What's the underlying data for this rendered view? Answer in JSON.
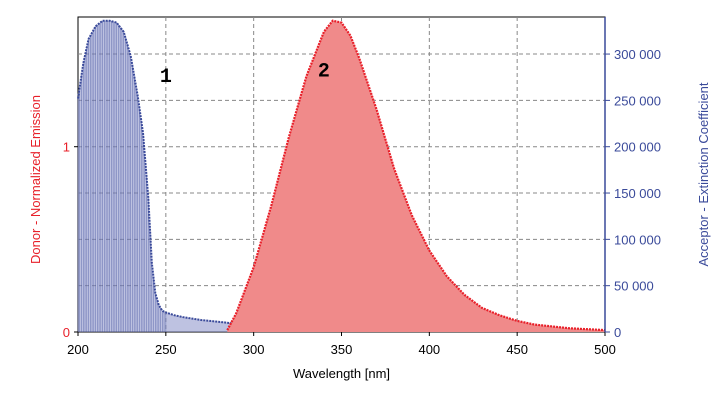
{
  "chart_data": {
    "type": "area",
    "title": "",
    "xlabel": "Wavelength [nm]",
    "ylabel_left": "Donor  -  Normalized Emission",
    "ylabel_right": "Acceptor  -  Extinction Coefficient",
    "xlim": [
      200,
      500
    ],
    "ylim_left": [
      0,
      1.7
    ],
    "ylim_right": [
      0,
      340000
    ],
    "x_ticks": [
      "200",
      "250",
      "300",
      "350",
      "400",
      "450",
      "500"
    ],
    "y_left_ticks": [
      {
        "v": 0,
        "label": "0"
      },
      {
        "v": 1,
        "label": "1"
      }
    ],
    "y_right_ticks": [
      {
        "v": 0,
        "label": "0"
      },
      {
        "v": 50000,
        "label": "50 000"
      },
      {
        "v": 100000,
        "label": "100 000"
      },
      {
        "v": 150000,
        "label": "150 000"
      },
      {
        "v": 200000,
        "label": "200 000"
      },
      {
        "v": 250000,
        "label": "250 000"
      },
      {
        "v": 300000,
        "label": "300 000"
      }
    ],
    "grid": true,
    "annotations": [
      {
        "text": "1",
        "x": 250,
        "y": 1.35
      },
      {
        "text": "2",
        "x": 340,
        "y": 1.38
      }
    ],
    "colors": {
      "donor": "#e8202a",
      "donor_fill": "#f08a8a",
      "acceptor": "#3a4a9a",
      "acceptor_fill": "#8890c8",
      "left_axis_label": "#e8202a",
      "right_axis": "#3a4a9a",
      "grid": "#888888"
    },
    "series": [
      {
        "axis": "right",
        "x": [
          200,
          203,
          206,
          210,
          214,
          218,
          222,
          226,
          230,
          234,
          237,
          240,
          242,
          244,
          246,
          248,
          250,
          255,
          260,
          270,
          280,
          290,
          300,
          320,
          340,
          360,
          380,
          400
        ],
        "values": [
          252000,
          290000,
          316000,
          330000,
          336000,
          336000,
          334000,
          324000,
          298000,
          255000,
          215000,
          145000,
          75000,
          42000,
          29000,
          23000,
          21000,
          18000,
          16000,
          13000,
          11000,
          9000,
          7500,
          5500,
          4000,
          3000,
          2000,
          1500
        ]
      },
      {
        "axis": "left",
        "x": [
          285,
          290,
          300,
          310,
          320,
          330,
          340,
          345,
          350,
          355,
          360,
          370,
          380,
          390,
          400,
          410,
          420,
          430,
          440,
          450,
          460,
          480,
          500
        ],
        "values": [
          0.01,
          0.1,
          0.35,
          0.68,
          1.05,
          1.38,
          1.62,
          1.68,
          1.67,
          1.6,
          1.48,
          1.2,
          0.88,
          0.63,
          0.44,
          0.3,
          0.2,
          0.13,
          0.09,
          0.06,
          0.04,
          0.02,
          0.01
        ]
      }
    ]
  }
}
